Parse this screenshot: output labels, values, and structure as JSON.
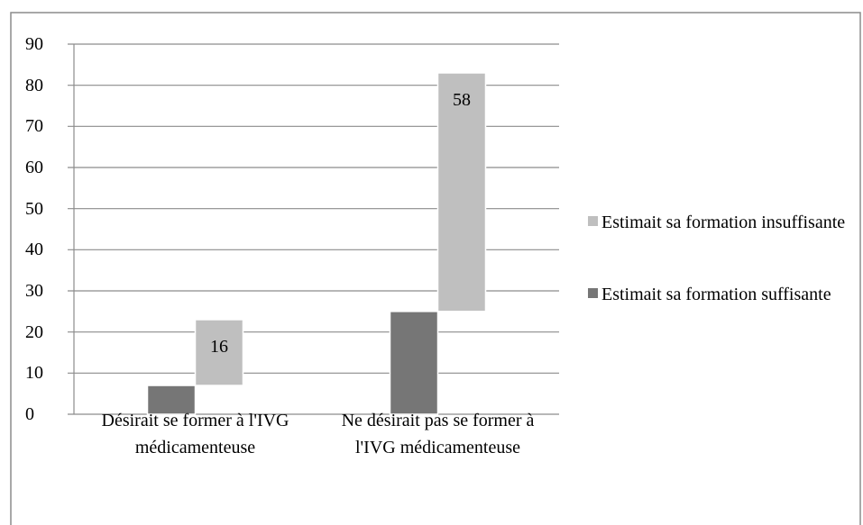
{
  "chart_data": {
    "type": "bar",
    "stacked": true,
    "categories": [
      "Désirait se former à l'IVG médicamenteuse",
      "Ne désirait pas se former à l'IVG médicamenteuse"
    ],
    "series": [
      {
        "name": "Estimait sa formation suffisante",
        "color": "#767676",
        "values": [
          7,
          25
        ]
      },
      {
        "name": "Estimait sa formation insuffisante",
        "color": "#bfbfbf",
        "values": [
          16,
          58
        ],
        "data_labels": true
      }
    ],
    "ylim": [
      0,
      90
    ],
    "yticks": [
      0,
      10,
      20,
      30,
      40,
      50,
      60,
      70,
      80,
      90
    ],
    "grid": true,
    "legend": "right"
  }
}
